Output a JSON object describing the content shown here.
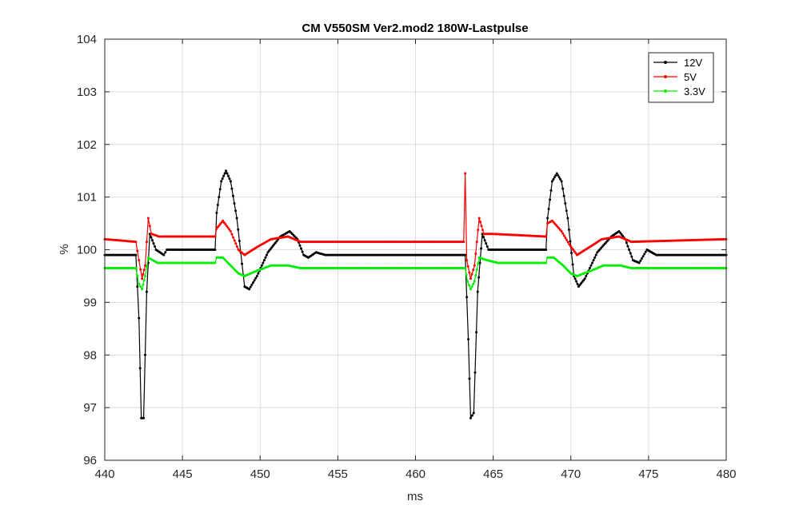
{
  "chart_data": {
    "type": "line",
    "title": "CM V550SM Ver2.mod2 180W-Lastpulse",
    "xlabel": "ms",
    "ylabel": "%",
    "xlim": [
      440,
      480
    ],
    "ylim": [
      96,
      104
    ],
    "xticks": [
      "440",
      "445",
      "450",
      "455",
      "460",
      "465",
      "470",
      "475",
      "480"
    ],
    "yticks": [
      "96",
      "97",
      "98",
      "99",
      "100",
      "101",
      "102",
      "103",
      "104"
    ],
    "grid": true,
    "legend_position": "top-right",
    "series": [
      {
        "name": "12V",
        "color": "#000000",
        "points": [
          [
            440,
            99.9
          ],
          [
            442,
            99.9
          ],
          [
            442.2,
            98.7
          ],
          [
            442.35,
            96.8
          ],
          [
            442.5,
            96.8
          ],
          [
            442.7,
            99.2
          ],
          [
            442.9,
            100.3
          ],
          [
            443.3,
            100.0
          ],
          [
            443.8,
            99.9
          ],
          [
            444,
            100.0
          ],
          [
            447.1,
            100.0
          ],
          [
            447.2,
            100.7
          ],
          [
            447.5,
            101.3
          ],
          [
            447.8,
            101.5
          ],
          [
            448.1,
            101.3
          ],
          [
            448.5,
            100.6
          ],
          [
            449,
            99.3
          ],
          [
            449.3,
            99.25
          ],
          [
            449.8,
            99.5
          ],
          [
            450.5,
            99.95
          ],
          [
            451.3,
            100.25
          ],
          [
            451.9,
            100.35
          ],
          [
            452.4,
            100.2
          ],
          [
            452.8,
            99.9
          ],
          [
            453.1,
            99.85
          ],
          [
            453.6,
            99.95
          ],
          [
            454.2,
            99.9
          ],
          [
            463.2,
            99.9
          ],
          [
            463.4,
            98.3
          ],
          [
            463.55,
            96.8
          ],
          [
            463.75,
            96.9
          ],
          [
            464,
            99.2
          ],
          [
            464.3,
            100.3
          ],
          [
            464.7,
            100.0
          ],
          [
            465.3,
            100.0
          ],
          [
            468.4,
            100.0
          ],
          [
            468.5,
            100.6
          ],
          [
            468.8,
            101.3
          ],
          [
            469.1,
            101.45
          ],
          [
            469.4,
            101.3
          ],
          [
            469.8,
            100.6
          ],
          [
            470.2,
            99.5
          ],
          [
            470.5,
            99.3
          ],
          [
            470.9,
            99.45
          ],
          [
            471.7,
            99.95
          ],
          [
            472.6,
            100.25
          ],
          [
            473.1,
            100.35
          ],
          [
            473.5,
            100.2
          ],
          [
            474,
            99.8
          ],
          [
            474.4,
            99.75
          ],
          [
            474.9,
            100.0
          ],
          [
            475.5,
            99.9
          ],
          [
            480,
            99.9
          ]
        ]
      },
      {
        "name": "5V",
        "color": "#ff0000",
        "points": [
          [
            440,
            100.2
          ],
          [
            442,
            100.15
          ],
          [
            442.2,
            99.8
          ],
          [
            442.4,
            99.45
          ],
          [
            442.6,
            99.7
          ],
          [
            442.8,
            100.6
          ],
          [
            443,
            100.3
          ],
          [
            443.5,
            100.25
          ],
          [
            447.1,
            100.25
          ],
          [
            447.2,
            100.4
          ],
          [
            447.6,
            100.55
          ],
          [
            448.1,
            100.35
          ],
          [
            448.6,
            100.0
          ],
          [
            449,
            99.9
          ],
          [
            449.8,
            100.05
          ],
          [
            450.7,
            100.2
          ],
          [
            451.8,
            100.25
          ],
          [
            452.6,
            100.15
          ],
          [
            463.1,
            100.15
          ],
          [
            463.2,
            101.45
          ],
          [
            463.3,
            99.8
          ],
          [
            463.55,
            99.45
          ],
          [
            463.8,
            99.7
          ],
          [
            464.1,
            100.6
          ],
          [
            464.4,
            100.3
          ],
          [
            465,
            100.3
          ],
          [
            468.4,
            100.25
          ],
          [
            468.5,
            100.5
          ],
          [
            468.8,
            100.55
          ],
          [
            469.4,
            100.35
          ],
          [
            469.9,
            100.1
          ],
          [
            470.4,
            99.9
          ],
          [
            471.2,
            100.05
          ],
          [
            472,
            100.2
          ],
          [
            473.1,
            100.25
          ],
          [
            473.9,
            100.15
          ],
          [
            480,
            100.2
          ]
        ]
      },
      {
        "name": "3.3V",
        "color": "#00ee00",
        "points": [
          [
            440,
            99.65
          ],
          [
            442,
            99.65
          ],
          [
            442.2,
            99.35
          ],
          [
            442.4,
            99.25
          ],
          [
            442.6,
            99.5
          ],
          [
            442.8,
            99.85
          ],
          [
            443.4,
            99.75
          ],
          [
            447.1,
            99.75
          ],
          [
            447.2,
            99.85
          ],
          [
            447.6,
            99.85
          ],
          [
            448.1,
            99.7
          ],
          [
            448.6,
            99.55
          ],
          [
            449,
            99.5
          ],
          [
            449.8,
            99.6
          ],
          [
            450.7,
            99.7
          ],
          [
            451.8,
            99.7
          ],
          [
            452.6,
            99.65
          ],
          [
            463.2,
            99.65
          ],
          [
            463.35,
            99.4
          ],
          [
            463.55,
            99.25
          ],
          [
            463.8,
            99.4
          ],
          [
            464.1,
            99.85
          ],
          [
            464.6,
            99.8
          ],
          [
            465.3,
            99.75
          ],
          [
            468.4,
            99.75
          ],
          [
            468.5,
            99.85
          ],
          [
            468.9,
            99.85
          ],
          [
            469.5,
            99.7
          ],
          [
            470,
            99.55
          ],
          [
            470.4,
            99.5
          ],
          [
            471.3,
            99.6
          ],
          [
            472.1,
            99.7
          ],
          [
            473.2,
            99.7
          ],
          [
            473.9,
            99.65
          ],
          [
            480,
            99.65
          ]
        ]
      }
    ]
  }
}
